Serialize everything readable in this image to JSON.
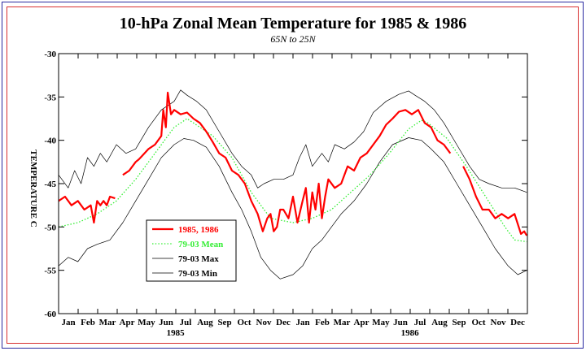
{
  "chart_data": {
    "type": "line",
    "title": "10-hPa Zonal Mean Temperature for 1985 & 1986",
    "subtitle": "65N to 25N",
    "ylabel": "TEMPERATURE C",
    "xlabel": "",
    "ylim": [
      -60,
      -30
    ],
    "yticks": [
      -60,
      -55,
      -50,
      -45,
      -40,
      -35,
      -30
    ],
    "xlim": [
      0,
      730
    ],
    "month_ticks": [
      "Jan",
      "Feb",
      "Mar",
      "Apr",
      "May",
      "Jun",
      "Jul",
      "Aug",
      "Sep",
      "Oct",
      "Nov",
      "Dec",
      "Jan",
      "Feb",
      "Mar",
      "Apr",
      "May",
      "Jun",
      "Jul",
      "Aug",
      "Sep",
      "Oct",
      "Nov",
      "Dec"
    ],
    "year_labels": [
      {
        "label": "1985",
        "day": 182
      },
      {
        "label": "1986",
        "day": 547
      }
    ],
    "grid": false,
    "legend_position": "lower-left",
    "series": [
      {
        "name": "1985, 1986",
        "color": "#ff0000",
        "style": "solid-thick",
        "x": [
          0,
          10,
          20,
          30,
          40,
          50,
          55,
          60,
          65,
          70,
          75,
          80,
          88,
          95,
          100,
          110,
          120,
          125,
          130,
          140,
          150,
          160,
          163,
          167,
          170,
          175,
          180,
          190,
          200,
          210,
          220,
          230,
          240,
          250,
          260,
          270,
          280,
          290,
          300,
          310,
          318,
          325,
          330,
          335,
          340,
          345,
          350,
          358,
          365,
          372,
          380,
          385,
          390,
          395,
          400,
          405,
          410,
          415,
          420,
          430,
          440,
          450,
          460,
          470,
          480,
          490,
          500,
          510,
          520,
          530,
          540,
          550,
          560,
          570,
          580,
          590,
          600,
          610,
          620,
          630,
          640,
          650,
          660,
          670,
          680,
          690,
          700,
          710,
          720,
          725,
          729
        ],
        "y": [
          -47,
          -46.5,
          -47.5,
          -47,
          -48,
          -47.5,
          -49.5,
          -47,
          -47.5,
          -47,
          -47.5,
          -46.5,
          -46.7,
          null,
          -44,
          -43.5,
          -42.5,
          -42.2,
          -41.8,
          -41,
          -40.5,
          -39.5,
          -36.5,
          -38.5,
          -34.5,
          -37,
          -36.5,
          -37,
          -36.8,
          -37.5,
          -38,
          -39,
          -40.2,
          -41.5,
          -42,
          -43.5,
          -44,
          -45,
          -47,
          -48.5,
          -50.5,
          -49,
          -48.5,
          -50.5,
          -50,
          -48,
          -48,
          -49,
          -46.5,
          -49.5,
          -47,
          -45.5,
          -49.5,
          -46,
          -48,
          -45,
          -49,
          -46.5,
          -44.5,
          -45.5,
          -45,
          -43,
          -43.5,
          -42,
          -41.5,
          -40.5,
          -39.5,
          -38.2,
          -37.5,
          -36.7,
          -36.5,
          -37,
          -36.5,
          -38,
          -38.5,
          -40,
          -40.5,
          -41.5,
          null,
          -43,
          -44.5,
          -46.5,
          -48,
          -48,
          -49,
          -48.5,
          -49,
          -48.5,
          -50.8,
          -50.5,
          -51
        ]
      },
      {
        "name": "79-03 Mean",
        "color": "#33ee33",
        "style": "dotted",
        "x": [
          0,
          30,
          60,
          90,
          120,
          150,
          180,
          200,
          210,
          240,
          270,
          300,
          330,
          365,
          395,
          425,
          455,
          485,
          515,
          545,
          565,
          575,
          605,
          635,
          665,
          695,
          710,
          729
        ],
        "y": [
          -50,
          -49.5,
          -48.5,
          -47,
          -44.5,
          -41.5,
          -38.5,
          -37.5,
          -38,
          -39.5,
          -42,
          -46,
          -49,
          -49.5,
          -49,
          -48,
          -46,
          -44,
          -41.5,
          -38.7,
          -37.7,
          -38,
          -39.8,
          -43,
          -46.5,
          -50,
          -51.5,
          -51.7
        ]
      },
      {
        "name": "79-03 Max",
        "color": "#000000",
        "style": "thin",
        "x": [
          0,
          15,
          25,
          35,
          45,
          55,
          65,
          75,
          90,
          105,
          120,
          140,
          160,
          180,
          190,
          200,
          215,
          230,
          250,
          270,
          285,
          300,
          310,
          320,
          335,
          350,
          365,
          375,
          385,
          395,
          410,
          420,
          430,
          445,
          460,
          475,
          490,
          510,
          530,
          545,
          555,
          570,
          585,
          600,
          620,
          640,
          655,
          670,
          690,
          710,
          729
        ],
        "y": [
          -44,
          -45.5,
          -43.5,
          -45,
          -42,
          -43,
          -41.5,
          -42.5,
          -40.5,
          -41.5,
          -41,
          -38.5,
          -36.5,
          -35.5,
          -34.2,
          -34.8,
          -35.5,
          -36.5,
          -39,
          -41.5,
          -43,
          -44,
          -45.5,
          -45,
          -44.5,
          -44.5,
          -44,
          -42,
          -40.5,
          -43,
          -41.5,
          -42.5,
          -40.5,
          -41,
          -40.2,
          -39,
          -36.8,
          -35.5,
          -34.7,
          -34.3,
          -34.8,
          -35.5,
          -36.5,
          -38,
          -40.5,
          -43,
          -44.5,
          -45,
          -45.5,
          -45.5,
          -46
        ]
      },
      {
        "name": "79-03 Min",
        "color": "#000000",
        "style": "thin",
        "x": [
          0,
          15,
          30,
          45,
          60,
          80,
          100,
          120,
          140,
          160,
          180,
          195,
          210,
          230,
          250,
          270,
          285,
          300,
          315,
          330,
          345,
          365,
          380,
          395,
          410,
          425,
          440,
          460,
          480,
          500,
          520,
          545,
          565,
          580,
          600,
          620,
          640,
          660,
          680,
          700,
          715,
          729
        ],
        "y": [
          -54.5,
          -53.5,
          -54,
          -52.5,
          -52,
          -51.5,
          -49.5,
          -47,
          -44.5,
          -42,
          -40.5,
          -39.8,
          -40,
          -40.8,
          -43,
          -46,
          -48,
          -50.5,
          -53.5,
          -55,
          -56,
          -55.5,
          -54.5,
          -52.5,
          -51.5,
          -50,
          -48.5,
          -47,
          -45,
          -42.5,
          -40.5,
          -39.7,
          -40,
          -41,
          -42.5,
          -45,
          -47.5,
          -50,
          -52.5,
          -54.5,
          -55.5,
          -55
        ]
      }
    ]
  }
}
